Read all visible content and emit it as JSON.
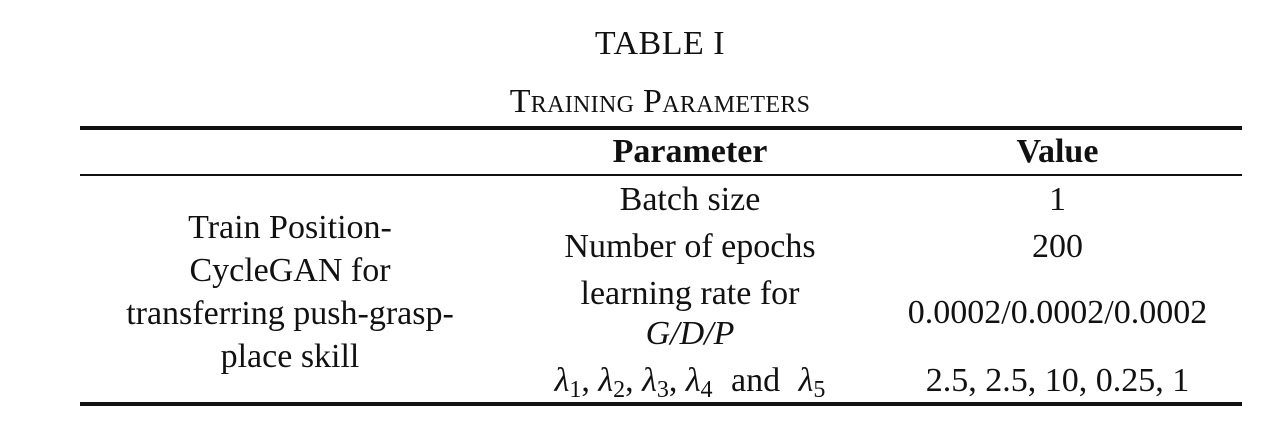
{
  "table": {
    "number": "TABLE I",
    "title": "Training Parameters",
    "headers": {
      "group": "",
      "parameter": "Parameter",
      "value": "Value"
    },
    "group_label": "Train Position-CycleGAN for transferring push-grasp-place skill",
    "group_label_lines": [
      "Train Position-",
      "CycleGAN for",
      "transferring push-grasp-",
      "place skill"
    ],
    "rows": [
      {
        "parameter": "Batch size",
        "value": "1"
      },
      {
        "parameter": "Number of epochs",
        "value": "200"
      },
      {
        "parameter_line1": "learning rate for",
        "parameter_line2": "G/D/P",
        "value": "0.0002/0.0002/0.0002"
      },
      {
        "parameter_symbols": [
          "λ",
          "1",
          "λ",
          "2",
          "λ",
          "3",
          "λ",
          "4"
        ],
        "parameter_separator": ",",
        "parameter_and": "and",
        "parameter_last_symbol": "λ",
        "parameter_last_sub": "5",
        "value": "2.5, 2.5, 10, 0.25, 1"
      }
    ]
  }
}
